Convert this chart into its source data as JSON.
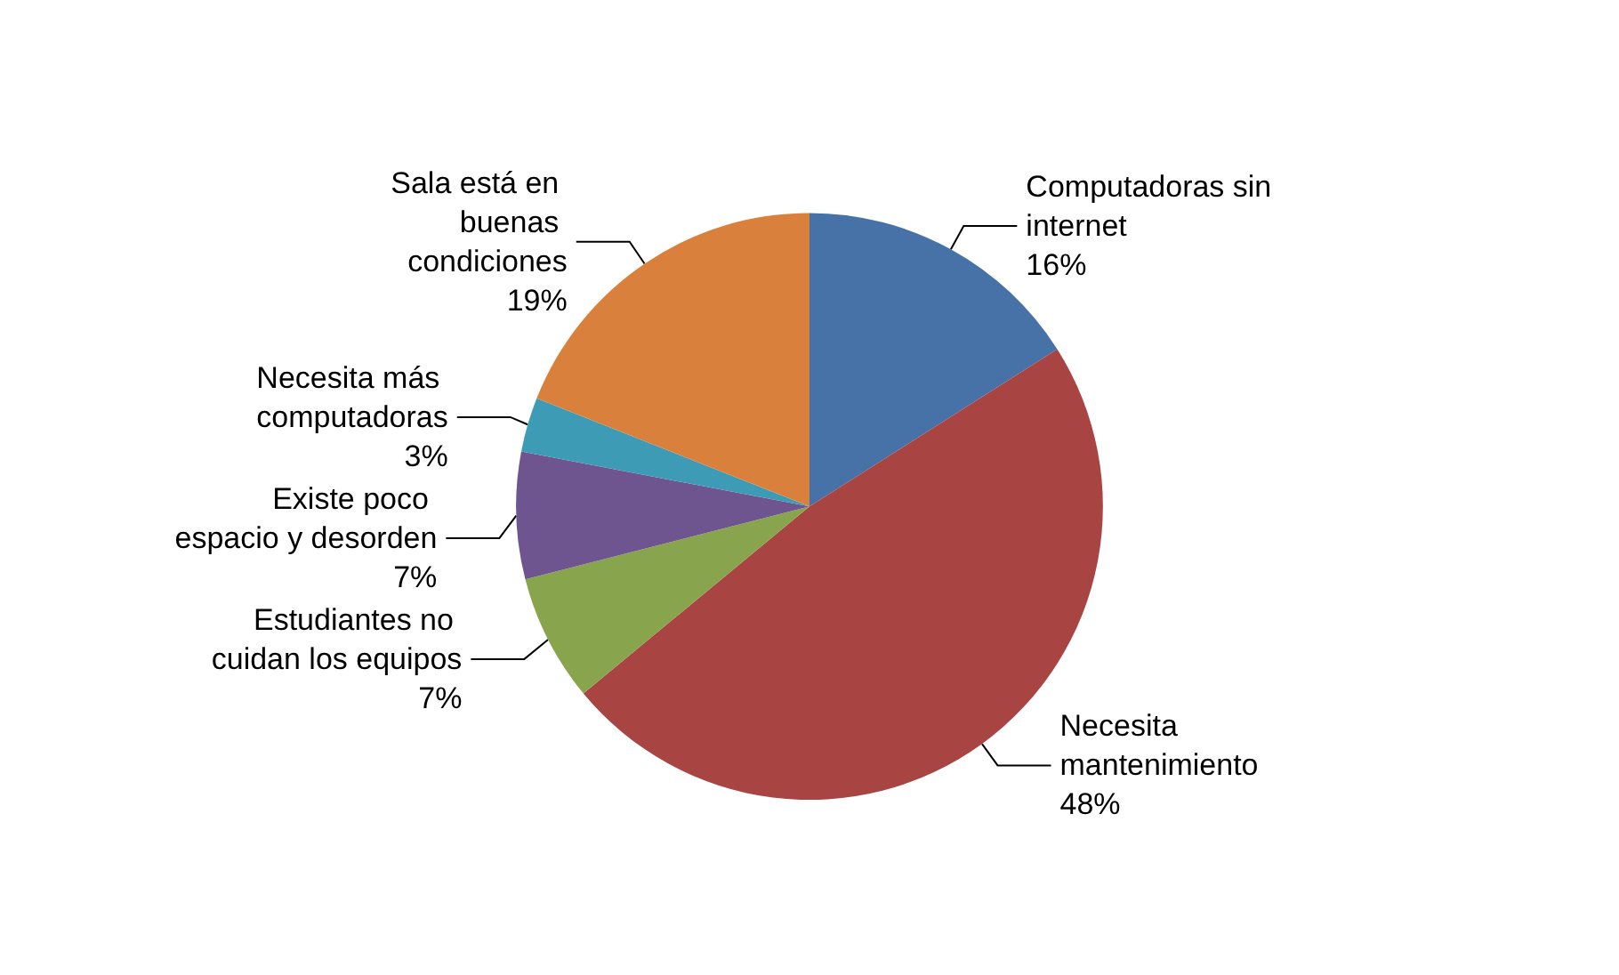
{
  "chart_data": {
    "type": "pie",
    "categories": [
      "Computadoras sin internet",
      "Necesita mantenimiento",
      "Estudiantes no cuidan los equipos",
      "Existe poco espacio y desorden",
      "Necesita más computadoras",
      "Sala está en buenas condiciones"
    ],
    "values": [
      16,
      48,
      7,
      7,
      3,
      19
    ],
    "colors": [
      "#4672a8",
      "#a84442",
      "#88a44c",
      "#6f5590",
      "#3d9bb5",
      "#d9813c"
    ],
    "value_labels": [
      "16%",
      "48%",
      "7%",
      "7%",
      "3%",
      "19%"
    ],
    "legend": false
  }
}
